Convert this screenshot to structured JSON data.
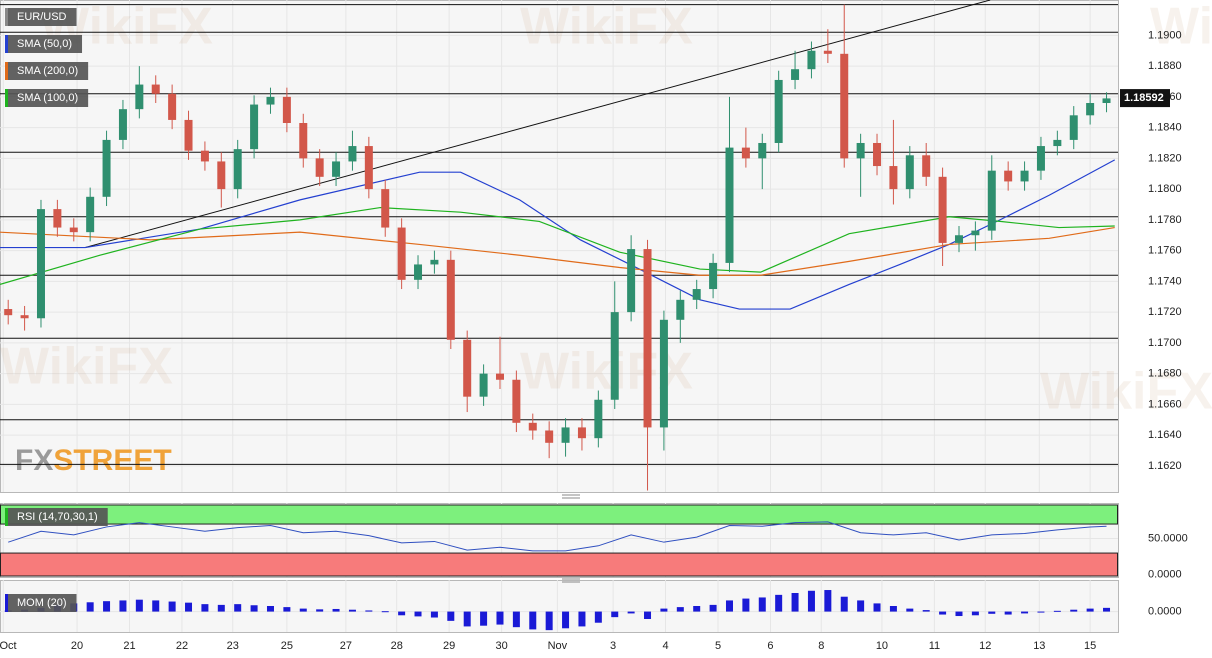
{
  "watermark": "WikiFX",
  "logo": [
    "FX",
    "STREET"
  ],
  "chart_data": [
    {
      "type": "candlestick",
      "title": "EUR/USD",
      "up_color": "#2f8f6f",
      "down_color": "#d2574a",
      "grid": true,
      "x": [
        0,
        1,
        2,
        3,
        4,
        5,
        6,
        7,
        8,
        9,
        10,
        11,
        12,
        13,
        14,
        15,
        16,
        17,
        18,
        19,
        20,
        21,
        22,
        23,
        24,
        25,
        26,
        27,
        28,
        29,
        30,
        31,
        32,
        33,
        34,
        35,
        36,
        37,
        38,
        39,
        40,
        41,
        42,
        43,
        44,
        45,
        46,
        47,
        48,
        49,
        50,
        51,
        52,
        53,
        54,
        55,
        56,
        57,
        58,
        59,
        60,
        61,
        62,
        63,
        64,
        65,
        66,
        67
      ],
      "open": [
        1.1722,
        1.1718,
        1.1716,
        1.1787,
        1.1775,
        1.1772,
        1.1795,
        1.1832,
        1.1852,
        1.1868,
        1.1862,
        1.1845,
        1.1825,
        1.1818,
        1.18,
        1.1826,
        1.1855,
        1.186,
        1.1843,
        1.182,
        1.1808,
        1.1818,
        1.1828,
        1.18,
        1.1775,
        1.1741,
        1.1751,
        1.1754,
        1.1702,
        1.1665,
        1.168,
        1.1676,
        1.1648,
        1.1643,
        1.1635,
        1.1645,
        1.1638,
        1.1663,
        1.172,
        1.1761,
        1.1645,
        1.1715,
        1.1728,
        1.1735,
        1.1752,
        1.1827,
        1.182,
        1.183,
        1.1871,
        1.1878,
        1.189,
        1.1888,
        1.182,
        1.183,
        1.1815,
        1.18,
        1.1822,
        1.1808,
        1.1765,
        1.177,
        1.1773,
        1.1812,
        1.1805,
        1.1812,
        1.1828,
        1.1832,
        1.1848,
        1.1856
      ],
      "high": [
        1.1728,
        1.1724,
        1.1793,
        1.1793,
        1.1781,
        1.1801,
        1.1838,
        1.1858,
        1.188,
        1.1874,
        1.1868,
        1.1851,
        1.1831,
        1.1824,
        1.1832,
        1.1861,
        1.1866,
        1.1866,
        1.1849,
        1.1826,
        1.1824,
        1.1838,
        1.1834,
        1.1806,
        1.1781,
        1.1757,
        1.176,
        1.176,
        1.1708,
        1.1686,
        1.1704,
        1.1682,
        1.1654,
        1.1649,
        1.1651,
        1.1651,
        1.1669,
        1.174,
        1.177,
        1.1767,
        1.1721,
        1.1734,
        1.1741,
        1.1758,
        1.186,
        1.184,
        1.1836,
        1.1877,
        1.189,
        1.1896,
        1.1904,
        1.192,
        1.1836,
        1.1836,
        1.1845,
        1.1828,
        1.183,
        1.1814,
        1.1776,
        1.1779,
        1.1822,
        1.1818,
        1.1818,
        1.1834,
        1.1838,
        1.1854,
        1.1862,
        1.1863
      ],
      "low": [
        1.1712,
        1.1708,
        1.171,
        1.1769,
        1.1766,
        1.1766,
        1.1789,
        1.1826,
        1.1846,
        1.1856,
        1.1839,
        1.1819,
        1.1812,
        1.1788,
        1.1794,
        1.182,
        1.1849,
        1.1837,
        1.1814,
        1.1802,
        1.1802,
        1.1812,
        1.1794,
        1.1769,
        1.1735,
        1.1735,
        1.1745,
        1.1696,
        1.1655,
        1.1659,
        1.167,
        1.1642,
        1.1637,
        1.1625,
        1.1626,
        1.163,
        1.1632,
        1.1657,
        1.1714,
        1.1604,
        1.163,
        1.17,
        1.1722,
        1.1729,
        1.1746,
        1.1814,
        1.18,
        1.1824,
        1.1865,
        1.1872,
        1.1882,
        1.1814,
        1.1795,
        1.1809,
        1.179,
        1.1794,
        1.1802,
        1.175,
        1.1759,
        1.176,
        1.1767,
        1.1799,
        1.1799,
        1.1806,
        1.1822,
        1.1826,
        1.1842,
        1.185
      ],
      "close": [
        1.1718,
        1.1716,
        1.1787,
        1.1775,
        1.1772,
        1.1795,
        1.1832,
        1.1852,
        1.1868,
        1.1862,
        1.1845,
        1.1825,
        1.1818,
        1.18,
        1.1826,
        1.1855,
        1.186,
        1.1843,
        1.182,
        1.1808,
        1.1818,
        1.1828,
        1.18,
        1.1775,
        1.1741,
        1.1751,
        1.1754,
        1.1702,
        1.1665,
        1.168,
        1.1676,
        1.1648,
        1.1643,
        1.1635,
        1.1645,
        1.1638,
        1.1663,
        1.172,
        1.1761,
        1.1645,
        1.1715,
        1.1728,
        1.1735,
        1.1752,
        1.1827,
        1.182,
        1.183,
        1.1871,
        1.1878,
        1.189,
        1.1888,
        1.182,
        1.183,
        1.1815,
        1.18,
        1.1822,
        1.1808,
        1.1765,
        1.177,
        1.1773,
        1.1812,
        1.1805,
        1.1812,
        1.1828,
        1.1832,
        1.1848,
        1.1856,
        1.1859
      ],
      "series": [
        {
          "name": "SMA (50,0)",
          "color": "#2440d0",
          "x": [
            -0.5,
            4.7,
            11.7,
            17.8,
            25.1,
            27.6,
            31.2,
            34.9,
            38.5,
            42.2,
            44.6,
            47.7,
            51.3,
            54.4,
            57.4,
            60.5,
            63.5,
            67.5
          ],
          "values": [
            1.1762,
            1.1762,
            1.1774,
            1.1793,
            1.1811,
            1.1811,
            1.1793,
            1.1767,
            1.1748,
            1.1728,
            1.1722,
            1.1722,
            1.1738,
            1.1751,
            1.1764,
            1.178,
            1.1796,
            1.1819
          ]
        },
        {
          "name": "SMA (200,0)",
          "color": "#e06b1a",
          "x": [
            -0.5,
            8.7,
            17.8,
            25.1,
            31.2,
            37.3,
            42.2,
            45.9,
            51.3,
            57.4,
            63.5,
            67.5
          ],
          "values": [
            1.1772,
            1.1767,
            1.1772,
            1.1764,
            1.1757,
            1.1749,
            1.1744,
            1.1744,
            1.1753,
            1.1764,
            1.1768,
            1.1775
          ]
        },
        {
          "name": "SMA (100,0)",
          "color": "#1fb31f",
          "x": [
            -0.5,
            5.6,
            11.7,
            17.8,
            22.7,
            27.6,
            32.4,
            37.3,
            42.2,
            45.9,
            51.3,
            57.4,
            60.5,
            64.1,
            67.5
          ],
          "values": [
            1.1738,
            1.1757,
            1.1774,
            1.178,
            1.1788,
            1.1785,
            1.1779,
            1.1759,
            1.1748,
            1.1746,
            1.1771,
            1.1782,
            1.1779,
            1.1775,
            1.1776
          ]
        }
      ],
      "levels": [
        1.192,
        1.1902,
        1.1862,
        1.1824,
        1.1782,
        1.1744,
        1.1703,
        1.165,
        1.1621
      ],
      "level_color": "#111111",
      "trendline": {
        "x": [
          4.7,
          59.9
        ],
        "values": [
          1.1762,
          1.1923
        ],
        "color": "#111111"
      },
      "last_price": 1.18592,
      "xlim": [
        -0.5,
        67.7
      ],
      "ylim": [
        1.1603,
        1.1923
      ],
      "xticks": [
        {
          "value": -0.3,
          "label": "Oct"
        },
        {
          "value": 4.2,
          "label": "20"
        },
        {
          "value": 7.4,
          "label": "21"
        },
        {
          "value": 10.6,
          "label": "22"
        },
        {
          "value": 13.7,
          "label": "23"
        },
        {
          "value": 17.0,
          "label": "25"
        },
        {
          "value": 20.6,
          "label": "27"
        },
        {
          "value": 23.7,
          "label": "28"
        },
        {
          "value": 26.9,
          "label": "29"
        },
        {
          "value": 30.1,
          "label": "30"
        },
        {
          "value": 33.5,
          "label": "Nov"
        },
        {
          "value": 36.9,
          "label": "3"
        },
        {
          "value": 40.1,
          "label": "4"
        },
        {
          "value": 43.3,
          "label": "5"
        },
        {
          "value": 46.5,
          "label": "6"
        },
        {
          "value": 49.6,
          "label": "8"
        },
        {
          "value": 53.3,
          "label": "10"
        },
        {
          "value": 56.5,
          "label": "11"
        },
        {
          "value": 59.6,
          "label": "12"
        },
        {
          "value": 62.9,
          "label": "13"
        },
        {
          "value": 66.0,
          "label": "15"
        }
      ],
      "yticks": [
        {
          "value": 1.162,
          "label": "1.1620"
        },
        {
          "value": 1.164,
          "label": "1.1640"
        },
        {
          "value": 1.166,
          "label": "1.1660"
        },
        {
          "value": 1.168,
          "label": "1.1680"
        },
        {
          "value": 1.17,
          "label": "1.1700"
        },
        {
          "value": 1.172,
          "label": "1.1720"
        },
        {
          "value": 1.174,
          "label": "1.1740"
        },
        {
          "value": 1.176,
          "label": "1.1760"
        },
        {
          "value": 1.178,
          "label": "1.1780"
        },
        {
          "value": 1.18,
          "label": "1.1800"
        },
        {
          "value": 1.182,
          "label": "1.1820"
        },
        {
          "value": 1.184,
          "label": "1.1840"
        },
        {
          "value": 1.186,
          "label": "1.1860"
        },
        {
          "value": 1.188,
          "label": "1.1880"
        },
        {
          "value": 1.19,
          "label": "1.1900"
        }
      ]
    },
    {
      "type": "line",
      "title": "RSI (14,70,30,1)",
      "color": "#3050c0",
      "grid": true,
      "x": [
        0,
        2,
        4,
        6,
        8,
        10,
        12,
        14,
        16,
        18,
        20,
        22,
        24,
        26,
        28,
        30,
        32,
        34,
        36,
        38,
        40,
        42,
        44,
        46,
        48,
        50,
        52,
        54,
        56,
        58,
        60,
        62,
        64,
        66,
        67
      ],
      "values": [
        45,
        60,
        55,
        66,
        72,
        66,
        60,
        65,
        68,
        58,
        60,
        54,
        44,
        46,
        34,
        38,
        33,
        33,
        40,
        55,
        45,
        52,
        68,
        67,
        72,
        73,
        58,
        55,
        58,
        48,
        55,
        57,
        62,
        66,
        67
      ],
      "overbought": 70,
      "oversold": 30,
      "overbought_color": "#7df07d",
      "oversold_color": "#f77b7b",
      "ylim": [
        -3,
        99
      ],
      "yticks": [
        {
          "value": 50,
          "label": "50.0000"
        },
        {
          "value": 0,
          "label": "0.0000"
        }
      ]
    },
    {
      "type": "bar",
      "title": "MOM (20)",
      "color": "#1a1ad6",
      "grid": true,
      "x": [
        0,
        1,
        2,
        3,
        4,
        5,
        6,
        7,
        8,
        9,
        10,
        11,
        12,
        13,
        14,
        15,
        16,
        17,
        18,
        19,
        20,
        21,
        22,
        23,
        24,
        25,
        26,
        27,
        28,
        29,
        30,
        31,
        32,
        33,
        34,
        35,
        36,
        37,
        38,
        39,
        40,
        41,
        42,
        43,
        44,
        45,
        46,
        47,
        48,
        49,
        50,
        51,
        52,
        53,
        54,
        55,
        56,
        57,
        58,
        59,
        60,
        61,
        62,
        63,
        64,
        65,
        66,
        67
      ],
      "values": [
        0.0003,
        0.0005,
        0.001,
        0.0018,
        0.0022,
        0.0025,
        0.0028,
        0.003,
        0.0032,
        0.003,
        0.0027,
        0.0024,
        0.002,
        0.0018,
        0.002,
        0.0017,
        0.0015,
        0.0012,
        0.0008,
        0.0006,
        0.0007,
        0.0005,
        0.0003,
        0.0001,
        -0.001,
        -0.0013,
        -0.0016,
        -0.0025,
        -0.004,
        -0.0038,
        -0.0035,
        -0.0042,
        -0.0048,
        -0.005,
        -0.0045,
        -0.004,
        -0.003,
        -0.0015,
        -0.0005,
        -0.002,
        0.0008,
        0.0012,
        0.0015,
        0.0018,
        0.003,
        0.0035,
        0.0038,
        0.0045,
        0.005,
        0.0056,
        0.0058,
        0.004,
        0.003,
        0.0022,
        0.0015,
        0.0008,
        0.0004,
        -0.0008,
        -0.0012,
        -0.001,
        -0.0006,
        -0.0008,
        -0.0005,
        -0.0002,
        0.0002,
        0.0005,
        0.0008,
        0.001
      ],
      "ylim": [
        -0.0055,
        0.0085
      ],
      "yticks": [
        {
          "value": 0,
          "label": "0.0000"
        }
      ]
    }
  ]
}
